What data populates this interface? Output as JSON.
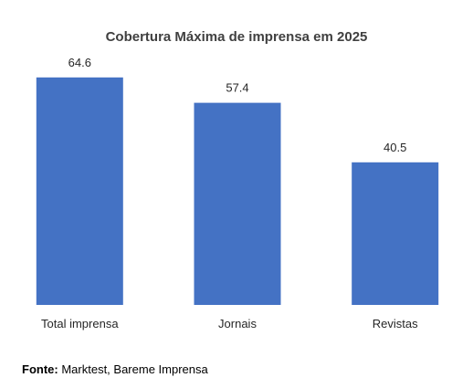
{
  "chart_data": {
    "type": "bar",
    "title": "Cobertura Máxima de imprensa em 2025",
    "categories": [
      "Total imprensa",
      "Jornais",
      "Revistas"
    ],
    "values": [
      64.6,
      57.4,
      40.5
    ],
    "data_labels": [
      "64.6",
      "57.4",
      "40.5"
    ],
    "xlabel": "",
    "ylabel": "",
    "ylim": [
      0,
      70
    ],
    "grid": false,
    "legend": "none",
    "bar_color": "#4472C4"
  },
  "source": {
    "label": "Fonte:",
    "text": "Marktest, Bareme Imprensa"
  }
}
